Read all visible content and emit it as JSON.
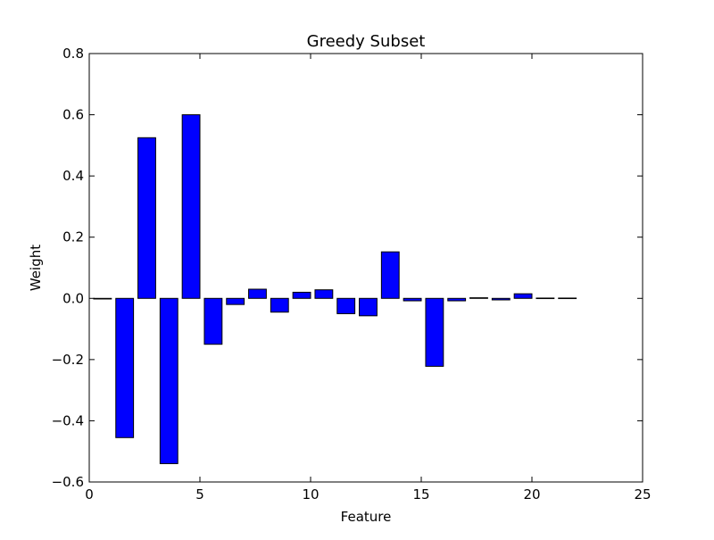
{
  "chart_data": {
    "type": "bar",
    "title": "Greedy Subset",
    "xlabel": "Feature",
    "ylabel": "Weight",
    "xlim": [
      0,
      25
    ],
    "ylim": [
      -0.6,
      0.8
    ],
    "xticks": [
      0,
      5,
      10,
      15,
      20,
      25
    ],
    "xtick_labels": [
      "0",
      "5",
      "10",
      "15",
      "20",
      "25"
    ],
    "yticks": [
      -0.6,
      -0.4,
      -0.2,
      0.0,
      0.2,
      0.4,
      0.6,
      0.8
    ],
    "ytick_labels": [
      "−0.6",
      "−0.4",
      "−0.2",
      "0.0",
      "0.2",
      "0.4",
      "0.6",
      "0.8"
    ],
    "bar_color": "#0000ff",
    "edge_color": "#000000",
    "grid": false,
    "x": [
      0,
      1,
      2,
      3,
      4,
      5,
      6,
      7,
      8,
      9,
      10,
      11,
      12,
      13,
      14,
      15,
      16,
      17,
      18,
      19,
      20,
      21
    ],
    "values": [
      -0.002,
      -0.455,
      0.525,
      -0.54,
      0.6,
      -0.15,
      -0.02,
      0.03,
      -0.045,
      0.02,
      0.028,
      -0.05,
      -0.057,
      0.152,
      -0.008,
      -0.222,
      -0.008,
      0.002,
      -0.005,
      0.015,
      0.001,
      0.001
    ]
  }
}
